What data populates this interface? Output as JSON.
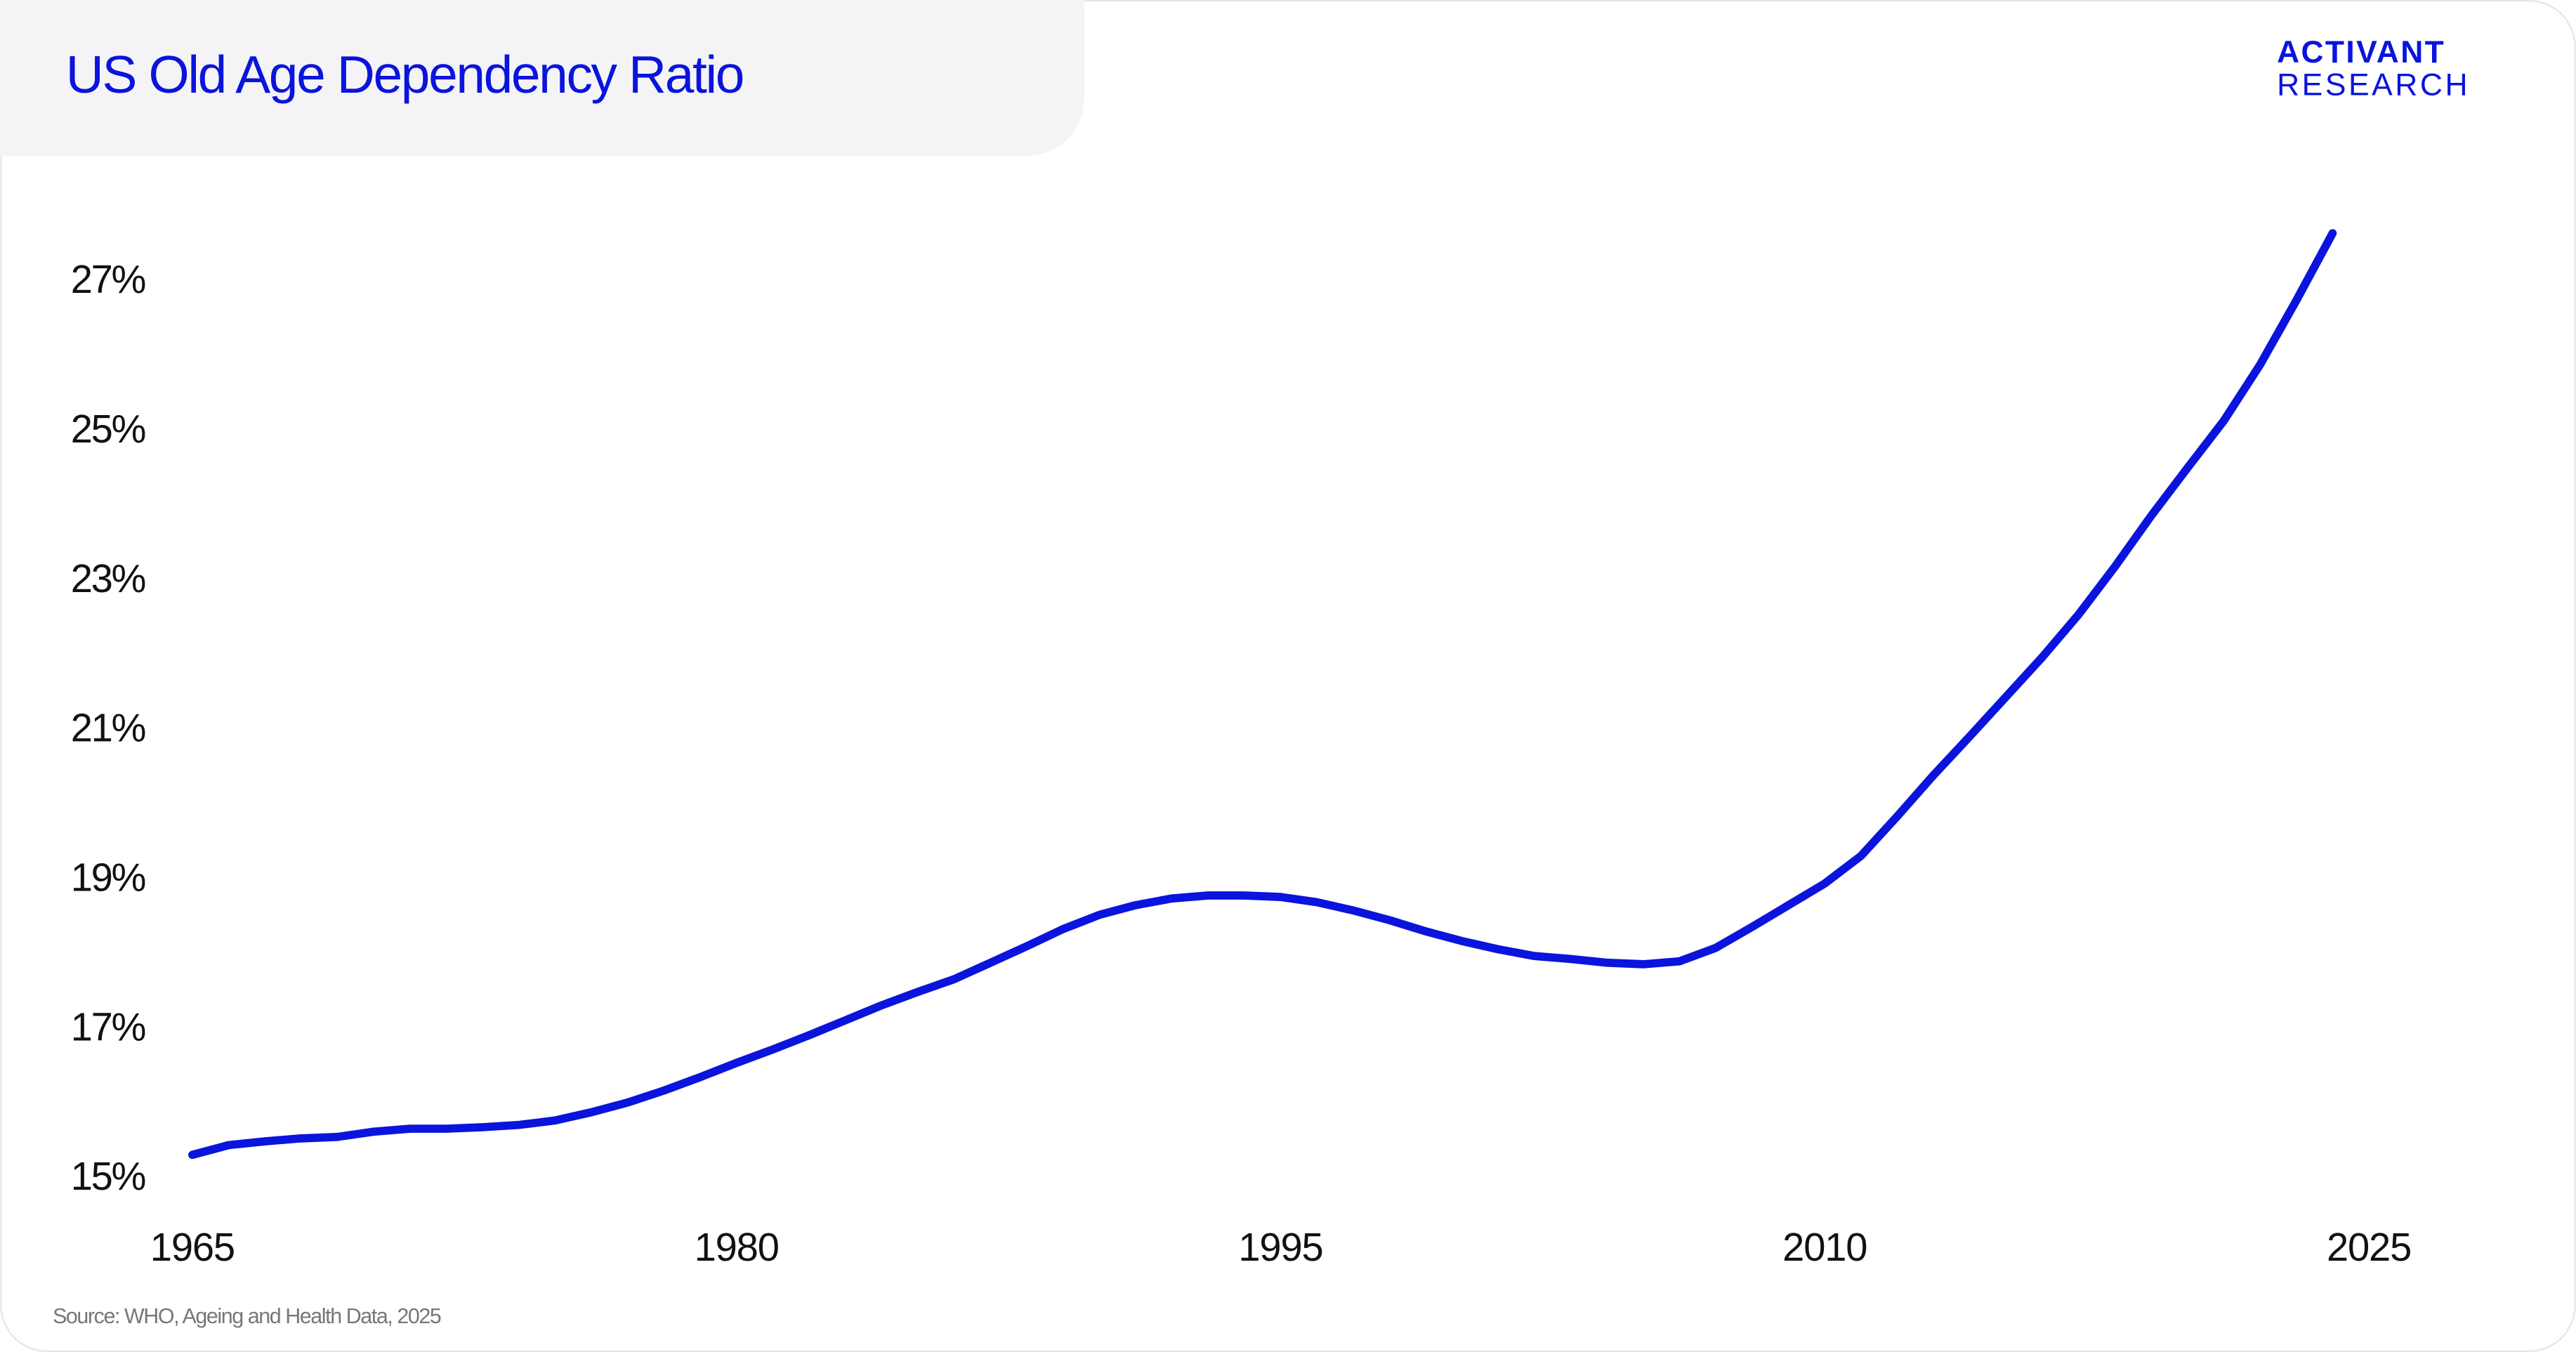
{
  "chart_data": {
    "type": "line",
    "title": "US Old Age Dependency Ratio",
    "brand": [
      "ACTIVANT",
      "RESEARCH"
    ],
    "source": "Source: WHO, Ageing and Health Data, 2025",
    "color": "#0a14dc",
    "x": [
      1965,
      1966,
      1967,
      1968,
      1969,
      1970,
      1971,
      1972,
      1973,
      1974,
      1975,
      1976,
      1977,
      1978,
      1979,
      1980,
      1981,
      1982,
      1983,
      1984,
      1985,
      1986,
      1987,
      1988,
      1989,
      1990,
      1991,
      1992,
      1993,
      1994,
      1995,
      1996,
      1997,
      1998,
      1999,
      2000,
      2001,
      2002,
      2003,
      2004,
      2005,
      2006,
      2007,
      2008,
      2009,
      2010,
      2011,
      2012,
      2013,
      2014,
      2015,
      2016,
      2017,
      2018,
      2019,
      2020,
      2021,
      2022,
      2023,
      2024
    ],
    "values": [
      15.33,
      15.46,
      15.51,
      15.55,
      15.57,
      15.64,
      15.68,
      15.68,
      15.7,
      15.73,
      15.79,
      15.9,
      16.03,
      16.19,
      16.37,
      16.56,
      16.74,
      16.93,
      17.13,
      17.33,
      17.51,
      17.68,
      17.9,
      18.12,
      18.35,
      18.54,
      18.67,
      18.76,
      18.8,
      18.8,
      18.78,
      18.71,
      18.6,
      18.47,
      18.32,
      18.19,
      18.08,
      17.99,
      17.95,
      17.9,
      17.88,
      17.92,
      18.1,
      18.38,
      18.67,
      18.96,
      19.33,
      19.86,
      20.41,
      20.93,
      21.46,
      21.99,
      22.56,
      23.2,
      23.88,
      24.52,
      25.15,
      25.9,
      26.76,
      27.66
    ],
    "xlim": [
      1965,
      2025
    ],
    "xticks": [
      1965,
      1980,
      1995,
      2010,
      2025
    ],
    "ylim": [
      15,
      28
    ],
    "yticks": [
      {
        "value": 15,
        "label": "15%"
      },
      {
        "value": 17,
        "label": "17%"
      },
      {
        "value": 19,
        "label": "19%"
      },
      {
        "value": 21,
        "label": "21%"
      },
      {
        "value": 23,
        "label": "23%"
      },
      {
        "value": 25,
        "label": "25%"
      },
      {
        "value": 27,
        "label": "27%"
      }
    ],
    "grid": false
  }
}
